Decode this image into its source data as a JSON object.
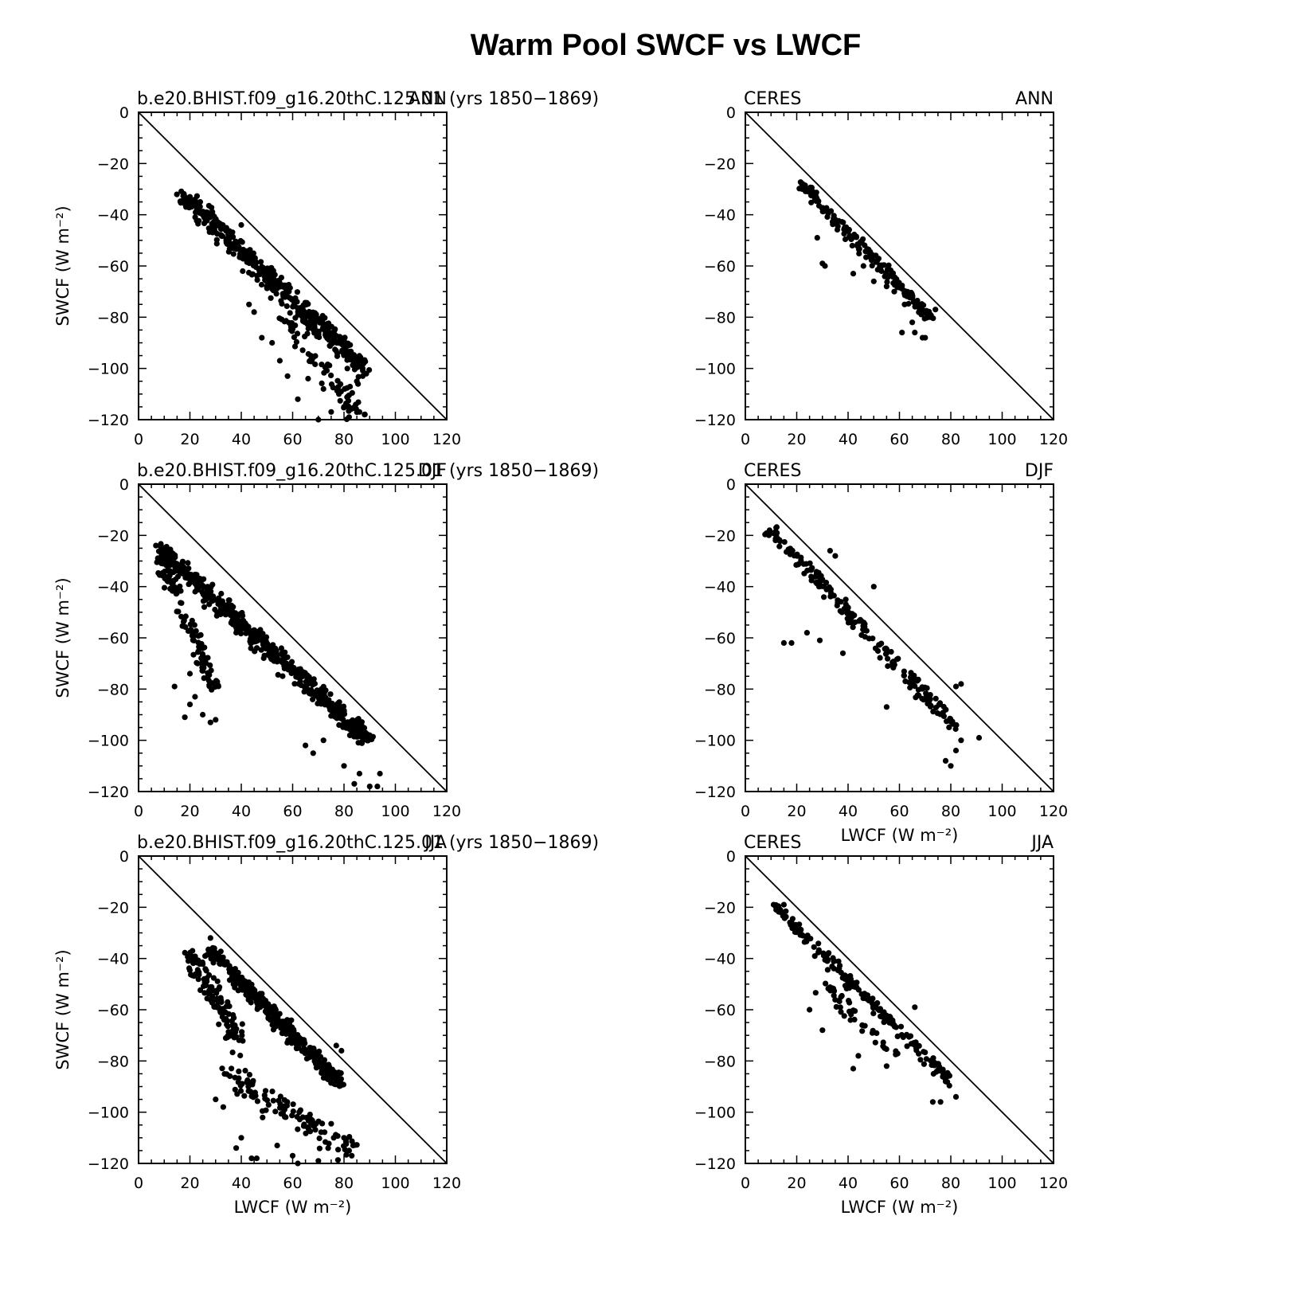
{
  "title": "Warm Pool SWCF vs LWCF",
  "colors": {
    "marker": "#000000",
    "axis": "#000000",
    "background": "#ffffff"
  },
  "chart_data": [
    {
      "type": "scatter",
      "left_label": "b.e20.BHIST.f09_g16.20thC.125.01 (yrs 1850−1869)",
      "right_label": "ANN",
      "xlabel": "",
      "ylabel": "SWCF (W m⁻²)",
      "xlim": [
        0,
        120
      ],
      "ylim": [
        -120,
        0
      ],
      "xticks": [
        0,
        20,
        40,
        60,
        80,
        100,
        120
      ],
      "yticks": [
        0,
        -20,
        -40,
        -60,
        -80,
        -100,
        -120
      ],
      "reference_line": "1:1 line (SWCF = -LWCF)",
      "cloud": [
        {
          "x0": 18,
          "x1": 88,
          "y0": -33,
          "y1": -100,
          "spread": 10,
          "n": 460
        },
        {
          "x0": 55,
          "x1": 88,
          "y0": -80,
          "y1": -120,
          "spread": 10,
          "n": 70
        }
      ],
      "points": [
        [
          18,
          -33
        ],
        [
          19,
          -34
        ],
        [
          20,
          -33
        ],
        [
          22,
          -34
        ],
        [
          24,
          -35
        ],
        [
          40,
          -44
        ],
        [
          43,
          -75
        ],
        [
          45,
          -78
        ],
        [
          62,
          -112
        ],
        [
          70,
          -120
        ],
        [
          75,
          -117
        ],
        [
          80,
          -115
        ],
        [
          82,
          -119
        ],
        [
          86,
          -117
        ],
        [
          88,
          -118
        ],
        [
          52,
          -90
        ],
        [
          48,
          -88
        ],
        [
          58,
          -103
        ],
        [
          55,
          -97
        ],
        [
          78,
          -110
        ],
        [
          85,
          -105
        ],
        [
          66,
          -104
        ],
        [
          72,
          -108
        ]
      ]
    },
    {
      "type": "scatter",
      "left_label": "CERES",
      "right_label": "ANN",
      "xlabel": "",
      "ylabel": "",
      "xlim": [
        0,
        120
      ],
      "ylim": [
        -120,
        0
      ],
      "xticks": [
        0,
        20,
        40,
        60,
        80,
        100,
        120
      ],
      "yticks": [
        0,
        -20,
        -40,
        -60,
        -80,
        -100,
        -120
      ],
      "reference_line": "1:1 line (SWCF = -LWCF)",
      "cloud": [
        {
          "x0": 22,
          "x1": 72,
          "y0": -28,
          "y1": -80,
          "spread": 6,
          "n": 170
        }
      ],
      "points": [
        [
          22,
          -28
        ],
        [
          23,
          -29
        ],
        [
          26,
          -32
        ],
        [
          28,
          -49
        ],
        [
          30,
          -59
        ],
        [
          31,
          -60
        ],
        [
          42,
          -63
        ],
        [
          50,
          -66
        ],
        [
          58,
          -70
        ],
        [
          61,
          -86
        ],
        [
          66,
          -86
        ],
        [
          69,
          -88
        ],
        [
          70,
          -88
        ],
        [
          65,
          -82
        ],
        [
          72,
          -80
        ],
        [
          74,
          -77
        ],
        [
          62,
          -75
        ],
        [
          55,
          -68
        ],
        [
          46,
          -60
        ],
        [
          44,
          -52
        ]
      ]
    },
    {
      "type": "scatter",
      "left_label": "b.e20.BHIST.f09_g16.20thC.125.01 (yrs 1850−1869)",
      "right_label": "DJF",
      "xlabel": "",
      "ylabel": "SWCF (W m⁻²)",
      "xlim": [
        0,
        120
      ],
      "ylim": [
        -120,
        0
      ],
      "xticks": [
        0,
        20,
        40,
        60,
        80,
        100,
        120
      ],
      "yticks": [
        0,
        -20,
        -40,
        -60,
        -80,
        -100,
        -120
      ],
      "reference_line": "1:1 line (SWCF = -LWCF)",
      "cloud": [
        {
          "x0": 8,
          "x1": 90,
          "y0": -25,
          "y1": -100,
          "spread": 9,
          "n": 520
        },
        {
          "x0": 8,
          "x1": 30,
          "y0": -28,
          "y1": -80,
          "spread": 8,
          "n": 110
        }
      ],
      "points": [
        [
          14,
          -79
        ],
        [
          18,
          -91
        ],
        [
          20,
          -86
        ],
        [
          22,
          -83
        ],
        [
          25,
          -90
        ],
        [
          28,
          -93
        ],
        [
          30,
          -92
        ],
        [
          84,
          -117
        ],
        [
          86,
          -113
        ],
        [
          90,
          -118
        ],
        [
          93,
          -118
        ],
        [
          94,
          -113
        ],
        [
          65,
          -102
        ],
        [
          68,
          -105
        ],
        [
          72,
          -100
        ],
        [
          80,
          -110
        ],
        [
          20,
          -74
        ],
        [
          23,
          -70
        ]
      ]
    },
    {
      "type": "scatter",
      "left_label": "CERES",
      "right_label": "DJF",
      "xlabel": "LWCF (W m⁻²)",
      "ylabel": "",
      "xlim": [
        0,
        120
      ],
      "ylim": [
        -120,
        0
      ],
      "xticks": [
        0,
        20,
        40,
        60,
        80,
        100,
        120
      ],
      "yticks": [
        0,
        -20,
        -40,
        -60,
        -80,
        -100,
        -120
      ],
      "reference_line": "1:1 line (SWCF = -LWCF)",
      "cloud": [
        {
          "x0": 10,
          "x1": 82,
          "y0": -18,
          "y1": -95,
          "spread": 7,
          "n": 190
        }
      ],
      "points": [
        [
          10,
          -19
        ],
        [
          12,
          -17
        ],
        [
          15,
          -62
        ],
        [
          18,
          -62
        ],
        [
          24,
          -58
        ],
        [
          29,
          -61
        ],
        [
          38,
          -66
        ],
        [
          55,
          -87
        ],
        [
          78,
          -108
        ],
        [
          80,
          -110
        ],
        [
          82,
          -104
        ],
        [
          84,
          -100
        ],
        [
          91,
          -99
        ],
        [
          84,
          -78
        ],
        [
          82,
          -79
        ],
        [
          33,
          -26
        ],
        [
          35,
          -28
        ],
        [
          50,
          -40
        ]
      ]
    },
    {
      "type": "scatter",
      "left_label": "b.e20.BHIST.f09_g16.20thC.125.01 (yrs 1850−1869)",
      "right_label": "JJA",
      "xlabel": "LWCF (W m⁻²)",
      "ylabel": "SWCF (W m⁻²)",
      "xlim": [
        0,
        120
      ],
      "ylim": [
        -120,
        0
      ],
      "xticks": [
        0,
        20,
        40,
        60,
        80,
        100,
        120
      ],
      "yticks": [
        0,
        -20,
        -40,
        -60,
        -80,
        -100,
        -120
      ],
      "reference_line": "1:1 line (SWCF = -LWCF)",
      "cloud": [
        {
          "x0": 28,
          "x1": 78,
          "y0": -37,
          "y1": -88,
          "spread": 7,
          "n": 400
        },
        {
          "x0": 20,
          "x1": 40,
          "y0": -38,
          "y1": -75,
          "spread": 10,
          "n": 110
        },
        {
          "x0": 35,
          "x1": 83,
          "y0": -85,
          "y1": -115,
          "spread": 14,
          "n": 110
        }
      ],
      "points": [
        [
          21,
          -37
        ],
        [
          22,
          -40
        ],
        [
          28,
          -32
        ],
        [
          30,
          -95
        ],
        [
          33,
          -98
        ],
        [
          38,
          -114
        ],
        [
          40,
          -110
        ],
        [
          44,
          -118
        ],
        [
          46,
          -118
        ],
        [
          54,
          -113
        ],
        [
          60,
          -117
        ],
        [
          62,
          -120
        ],
        [
          70,
          -119
        ],
        [
          76,
          -110
        ],
        [
          80,
          -110
        ],
        [
          82,
          -115
        ],
        [
          83,
          -117
        ],
        [
          77,
          -74
        ],
        [
          79,
          -76
        ]
      ]
    },
    {
      "type": "scatter",
      "left_label": "CERES",
      "right_label": "JJA",
      "xlabel": "LWCF (W m⁻²)",
      "ylabel": "",
      "xlim": [
        0,
        120
      ],
      "ylim": [
        -120,
        0
      ],
      "xticks": [
        0,
        20,
        40,
        60,
        80,
        100,
        120
      ],
      "yticks": [
        0,
        -20,
        -40,
        -60,
        -80,
        -100,
        -120
      ],
      "reference_line": "1:1 line (SWCF = -LWCF)",
      "cloud": [
        {
          "x0": 11,
          "x1": 80,
          "y0": -19,
          "y1": -88,
          "spread": 6,
          "n": 190
        },
        {
          "x0": 30,
          "x1": 60,
          "y0": -50,
          "y1": -80,
          "spread": 8,
          "n": 40
        }
      ],
      "points": [
        [
          11,
          -19
        ],
        [
          12,
          -21
        ],
        [
          15,
          -19
        ],
        [
          25,
          -60
        ],
        [
          30,
          -68
        ],
        [
          42,
          -83
        ],
        [
          44,
          -78
        ],
        [
          55,
          -82
        ],
        [
          73,
          -96
        ],
        [
          76,
          -96
        ],
        [
          82,
          -94
        ],
        [
          78,
          -88
        ],
        [
          66,
          -59
        ]
      ]
    }
  ]
}
